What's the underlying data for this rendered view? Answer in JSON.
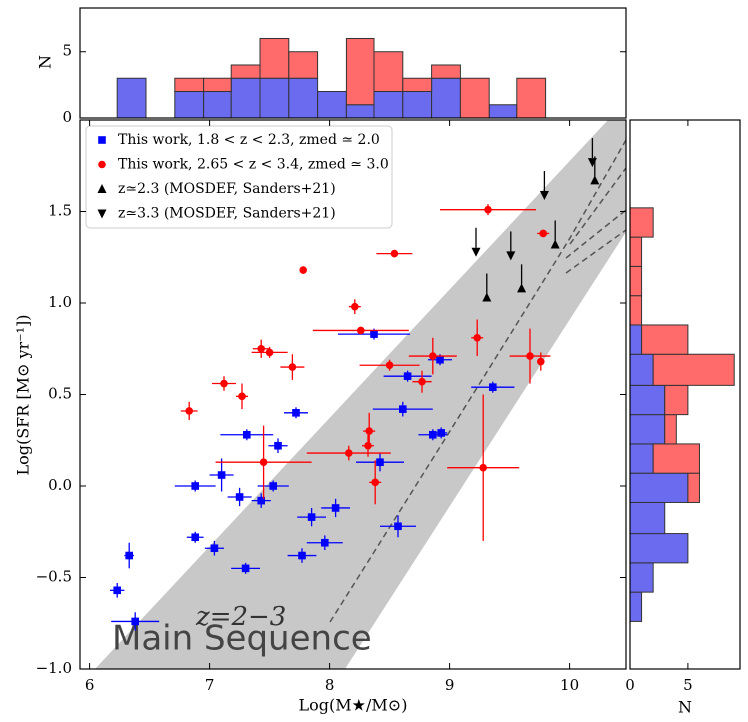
{
  "chart_data": [
    {
      "type": "scatter",
      "xlabel": "Log(M★/M⊙)",
      "ylabel": "Log(SFR [M⊙ yr⁻¹])",
      "xlim": [
        5.92,
        10.47
      ],
      "ylim": [
        -1.0,
        2.0
      ],
      "xticks": [
        6,
        7,
        8,
        9,
        10
      ],
      "yticks": [
        {
          "value": -1.0,
          "label": "−1.0"
        },
        {
          "value": -0.5,
          "label": "−0.5"
        },
        {
          "value": 0,
          "label": "0.0"
        },
        0.5,
        {
          "value": 1.0,
          "label": "1.0"
        },
        1.5
      ],
      "legend": "upper left",
      "annotations": [
        "z=2−3",
        "Main Sequence"
      ],
      "series": [
        {
          "name": "This work, 1.8 < z < 2.3, zmed ≃ 2.0",
          "color": "#0000ff",
          "marker": "square",
          "x": [
            6.23,
            6.33,
            6.38,
            6.88,
            6.88,
            7.04,
            7.1,
            7.25,
            7.3,
            7.31,
            7.43,
            7.53,
            7.57,
            7.72,
            7.77,
            7.85,
            7.96,
            8.05,
            8.37,
            8.42,
            8.57,
            8.61,
            8.65,
            8.86,
            8.93,
            8.92,
            9.36
          ],
          "values": [
            -0.57,
            -0.38,
            -0.74,
            0.0,
            -0.28,
            -0.34,
            0.06,
            -0.06,
            -0.45,
            0.28,
            -0.08,
            0.0,
            0.22,
            0.4,
            -0.38,
            -0.17,
            -0.31,
            -0.12,
            0.83,
            0.13,
            -0.22,
            0.42,
            0.6,
            0.28,
            0.29,
            0.69,
            0.54
          ],
          "xerr": [
            0.06,
            0.04,
            0.2,
            0.17,
            0.07,
            0.08,
            0.1,
            0.1,
            0.12,
            0.22,
            0.08,
            0.13,
            0.08,
            0.1,
            0.12,
            0.12,
            0.15,
            0.12,
            0.3,
            0.2,
            0.15,
            0.25,
            0.2,
            0.12,
            0.05,
            0.1,
            0.18
          ],
          "yerr": [
            0.04,
            0.07,
            0.05,
            0.03,
            0.03,
            0.04,
            0.09,
            0.05,
            0.03,
            0.03,
            0.04,
            0.03,
            0.04,
            0.03,
            0.04,
            0.05,
            0.04,
            0.05,
            0.03,
            0.05,
            0.06,
            0.04,
            0.03,
            0.03,
            0.03,
            0.03,
            0.03
          ]
        },
        {
          "name": "This work, 2.65 < z < 3.4, zmed ≃ 3.0",
          "color": "#ff0000",
          "marker": "circle",
          "x": [
            6.83,
            7.12,
            7.27,
            7.43,
            7.5,
            7.69,
            7.45,
            7.78,
            8.21,
            8.26,
            8.16,
            8.32,
            8.33,
            8.38,
            8.5,
            8.54,
            8.77,
            8.86,
            9.32,
            9.23,
            9.28,
            9.67,
            9.76,
            9.78
          ],
          "values": [
            0.41,
            0.56,
            0.49,
            0.75,
            0.73,
            0.65,
            0.13,
            1.18,
            0.98,
            0.85,
            0.18,
            0.22,
            0.3,
            0.02,
            0.66,
            1.27,
            0.57,
            0.71,
            1.51,
            0.81,
            0.1,
            0.71,
            0.68,
            1.38
          ],
          "xerr": [
            0.07,
            0.1,
            0.05,
            0.07,
            0.15,
            0.1,
            0.4,
            0.02,
            0.05,
            0.4,
            0.35,
            0.05,
            0.05,
            0.05,
            0.25,
            0.15,
            0.08,
            0.2,
            0.4,
            0.05,
            0.3,
            0.17,
            0.03,
            0.05
          ],
          "yerr": [
            0.05,
            0.04,
            0.07,
            0.05,
            0.03,
            0.07,
            0.2,
            0.02,
            0.04,
            0.02,
            0.04,
            0.06,
            0.1,
            0.12,
            0.03,
            0.02,
            0.06,
            0.1,
            0.03,
            0.1,
            0.4,
            0.15,
            0.05,
            0.02
          ]
        },
        {
          "name": "z≃2.3 (MOSDEF, Sanders+21)",
          "color": "#000000",
          "marker": "triangle-up",
          "x": [
            9.31,
            9.6,
            9.88,
            10.21
          ],
          "values": [
            1.03,
            1.08,
            1.32,
            1.67
          ]
        },
        {
          "name": "z≃3.3 (MOSDEF, Sanders+21)",
          "color": "#000000",
          "marker": "triangle-down",
          "x": [
            9.22,
            9.51,
            9.79,
            10.19
          ],
          "values": [
            1.28,
            1.26,
            1.59,
            1.77
          ]
        }
      ]
    },
    {
      "type": "histogram",
      "orientation": "vertical",
      "stacked": true,
      "ylabel": "N",
      "xlim": [
        5.92,
        10.47
      ],
      "ylim": [
        0,
        8.3
      ],
      "yticks": [
        0,
        5
      ],
      "bins": [
        6.23,
        6.47,
        6.71,
        6.95,
        7.18,
        7.42,
        7.66,
        7.9,
        8.14,
        8.37,
        8.61,
        8.85,
        9.09,
        9.33,
        9.56,
        9.8
      ],
      "series": [
        {
          "color": "#6b6bef",
          "values": [
            3,
            0,
            2,
            2,
            3,
            3,
            3,
            2,
            1,
            2,
            2,
            3,
            0,
            1,
            0
          ]
        },
        {
          "color": "#ff6b6b",
          "values": [
            0,
            0,
            1,
            1,
            1,
            3,
            2,
            0,
            5,
            3,
            1,
            1,
            3,
            0,
            3
          ]
        }
      ]
    },
    {
      "type": "histogram",
      "orientation": "horizontal",
      "stacked": true,
      "xlabel": "N",
      "xlim": [
        0,
        9.5
      ],
      "xticks": [
        0,
        5
      ],
      "ylim": [
        -1.0,
        2.0
      ],
      "bins": [
        -0.74,
        -0.58,
        -0.42,
        -0.26,
        -0.09,
        0.07,
        0.23,
        0.39,
        0.55,
        0.72,
        0.88,
        1.04,
        1.2,
        1.36,
        1.52
      ],
      "series": [
        {
          "color": "#6b6bef",
          "values": [
            1,
            2,
            5,
            3,
            5,
            2,
            3,
            3,
            2,
            1,
            0,
            0,
            0,
            0
          ]
        },
        {
          "color": "#ff6b6b",
          "values": [
            0,
            0,
            0,
            0,
            1,
            4,
            1,
            2,
            7,
            4,
            1,
            1,
            1,
            2
          ]
        }
      ]
    }
  ]
}
